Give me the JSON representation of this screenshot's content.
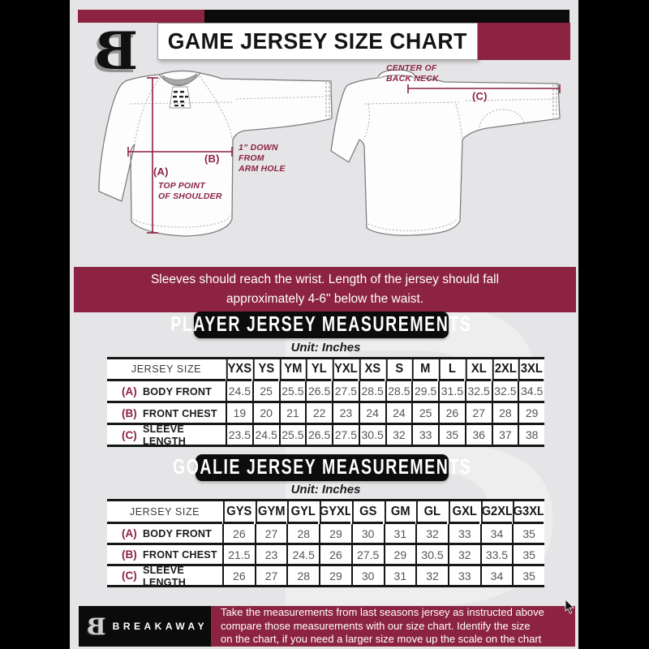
{
  "colors": {
    "maroon": "#8C2342",
    "black": "#0B0B0B",
    "background": "#E5E4E6"
  },
  "header": {
    "logo_letter": "B",
    "title": "GAME JERSEY SIZE CHART"
  },
  "diagram": {
    "center_back_neck_note": "CENTER OF\nBACK NECK",
    "a_tag": "(A)",
    "a_note": "TOP POINT\nOF SHOULDER",
    "b_tag": "(B)",
    "b_note": "1” DOWN\nFROM\nARM HOLE",
    "c_tag": "(C)"
  },
  "banner": {
    "line1": "Sleeves should reach the wrist. Length of the jersey should fall",
    "line2": "approximately 4-6\" below the waist."
  },
  "player_table": {
    "heading": "PLAYER JERSEY MEASUREMENTS",
    "unit": "Unit: Inches",
    "size_col_header": "JERSEY SIZE",
    "label_col_width": 146,
    "sizes": [
      "YXS",
      "YS",
      "YM",
      "YL",
      "YXL",
      "XS",
      "S",
      "M",
      "L",
      "XL",
      "2XL",
      "3XL"
    ],
    "rows": [
      {
        "tag": "(A)",
        "label": "BODY FRONT",
        "values": [
          "24.5",
          "25",
          "25.5",
          "26.5",
          "27.5",
          "28.5",
          "28.5",
          "29.5",
          "31.5",
          "32.5",
          "32.5",
          "34.5"
        ]
      },
      {
        "tag": "(B)",
        "label": "FRONT CHEST",
        "values": [
          "19",
          "20",
          "21",
          "22",
          "23",
          "24",
          "24",
          "25",
          "26",
          "27",
          "28",
          "29"
        ]
      },
      {
        "tag": "(C)",
        "label": "SLEEVE LENGTH",
        "values": [
          "23.5",
          "24.5",
          "25.5",
          "26.5",
          "27.5",
          "30.5",
          "32",
          "33",
          "35",
          "36",
          "37",
          "38"
        ]
      }
    ]
  },
  "goalie_table": {
    "heading": "GOALIE JERSEY MEASUREMENTS",
    "unit": "Unit: Inches",
    "size_col_header": "JERSEY SIZE",
    "label_col_width": 142,
    "sizes": [
      "GYS",
      "GYM",
      "GYL",
      "GYXL",
      "GS",
      "GM",
      "GL",
      "GXL",
      "G2XL",
      "G3XL"
    ],
    "rows": [
      {
        "tag": "(A)",
        "label": "BODY FRONT",
        "values": [
          "26",
          "27",
          "28",
          "29",
          "30",
          "31",
          "32",
          "33",
          "34",
          "35"
        ]
      },
      {
        "tag": "(B)",
        "label": "FRONT CHEST",
        "values": [
          "21.5",
          "23",
          "24.5",
          "26",
          "27.5",
          "29",
          "30.5",
          "32",
          "33.5",
          "35"
        ]
      },
      {
        "tag": "(C)",
        "label": "SLEEVE LENGTH",
        "values": [
          "26",
          "27",
          "28",
          "29",
          "30",
          "31",
          "32",
          "33",
          "34",
          "35"
        ]
      }
    ]
  },
  "footer": {
    "brand": "BREAKAWAY",
    "line1": "Take the measurements from last seasons jersey as instructed above",
    "line2": "compare those measurements  with our size chart. Identify the size",
    "line3": "on the chart, if you need a larger size move up the scale on the chart"
  }
}
